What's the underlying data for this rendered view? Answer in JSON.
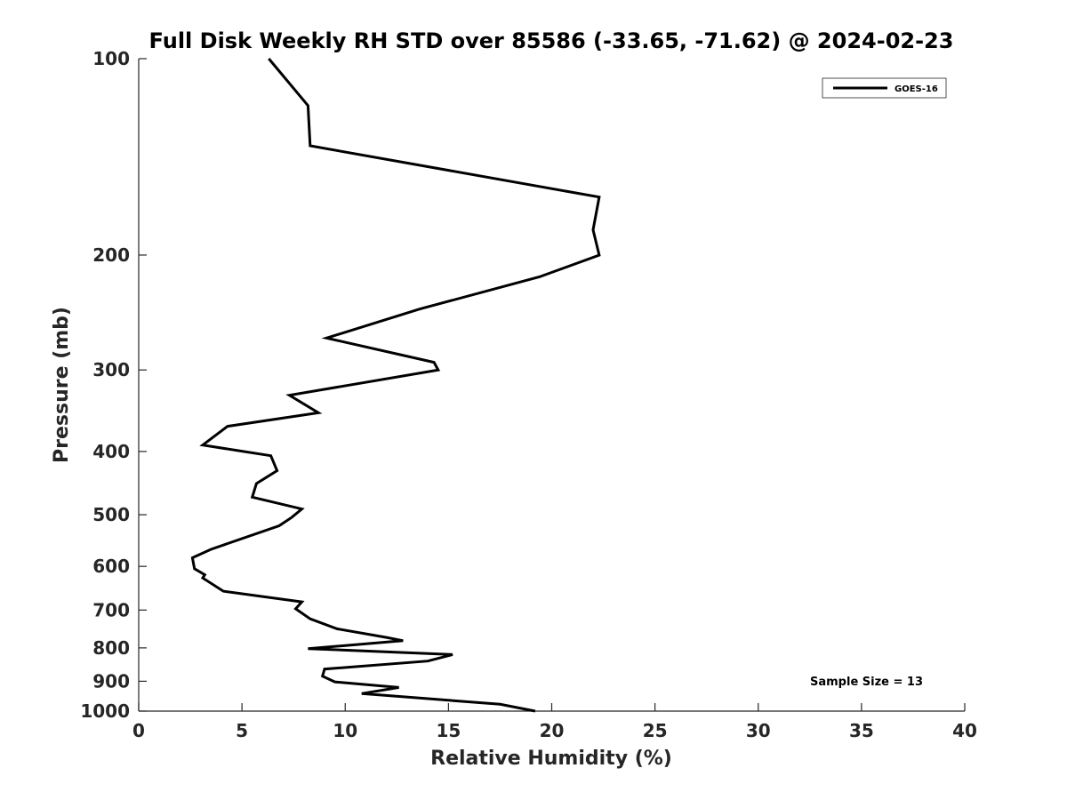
{
  "chart_data": {
    "type": "line",
    "title": "Full Disk Weekly RH STD over 85586 (-33.65, -71.62) @ 2024-02-23",
    "xlabel": "Relative Humidity (%)",
    "ylabel": "Pressure (mb)",
    "xlim": [
      0,
      40
    ],
    "ylim": [
      100,
      1000
    ],
    "yscale": "log",
    "yreversed": true,
    "xticks": [
      "0",
      "5",
      "10",
      "15",
      "20",
      "25",
      "30",
      "35",
      "40"
    ],
    "yticks": [
      "100",
      "200",
      "300",
      "400",
      "500",
      "600",
      "700",
      "800",
      "900",
      "1000"
    ],
    "grid": false,
    "legend_position": "top-right",
    "annotation": "Sample Size = 13",
    "series": [
      {
        "name": "GOES-16",
        "color": "#000000",
        "points": [
          [
            6.3,
            100
          ],
          [
            8.2,
            118
          ],
          [
            8.3,
            136
          ],
          [
            22.3,
            163
          ],
          [
            22.0,
            183
          ],
          [
            22.3,
            200
          ],
          [
            19.4,
            216
          ],
          [
            13.6,
            242
          ],
          [
            9.1,
            268
          ],
          [
            14.3,
            292
          ],
          [
            14.5,
            300
          ],
          [
            7.3,
            328
          ],
          [
            8.7,
            349
          ],
          [
            4.3,
            366
          ],
          [
            3.1,
            391
          ],
          [
            6.4,
            406
          ],
          [
            6.7,
            428
          ],
          [
            5.7,
            448
          ],
          [
            5.5,
            470
          ],
          [
            7.9,
            490
          ],
          [
            7.4,
            505
          ],
          [
            6.8,
            520
          ],
          [
            3.5,
            565
          ],
          [
            2.6,
            582
          ],
          [
            2.7,
            605
          ],
          [
            3.2,
            618
          ],
          [
            3.1,
            625
          ],
          [
            4.1,
            655
          ],
          [
            7.9,
            680
          ],
          [
            7.6,
            697
          ],
          [
            8.3,
            722
          ],
          [
            9.6,
            748
          ],
          [
            12.0,
            771
          ],
          [
            12.8,
            780
          ],
          [
            8.2,
            802
          ],
          [
            15.2,
            819
          ],
          [
            14.0,
            838
          ],
          [
            9.0,
            862
          ],
          [
            8.9,
            884
          ],
          [
            9.5,
            902
          ],
          [
            12.6,
            920
          ],
          [
            10.8,
            940
          ],
          [
            17.5,
            976
          ],
          [
            19.2,
            1000
          ]
        ]
      }
    ]
  }
}
